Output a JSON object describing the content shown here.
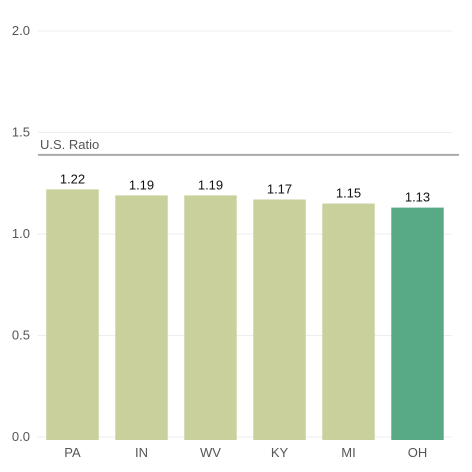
{
  "chart_data": {
    "type": "bar",
    "categories": [
      "PA",
      "IN",
      "WV",
      "KY",
      "MI",
      "OH"
    ],
    "values": [
      1.22,
      1.19,
      1.19,
      1.17,
      1.15,
      1.13
    ],
    "data_labels": [
      "1.22",
      "1.19",
      "1.19",
      "1.17",
      "1.15",
      "1.13"
    ],
    "title": "",
    "xlabel": "",
    "ylabel": "",
    "ylim": [
      0,
      2
    ],
    "yticks": [
      0.0,
      0.5,
      1.0,
      1.5,
      2.0
    ],
    "ytick_labels": [
      "0.0",
      "0.5",
      "1.0",
      "1.5",
      "2.0"
    ],
    "grid": true,
    "reference_line": {
      "label": "U.S. Ratio",
      "value": 1.39
    },
    "colors": {
      "default_bar": "#c9d09b",
      "highlight_bar": "#58a985",
      "reference_line": "#aaaaaa",
      "grid": "#eeeeee"
    },
    "highlight_category": "OH"
  }
}
